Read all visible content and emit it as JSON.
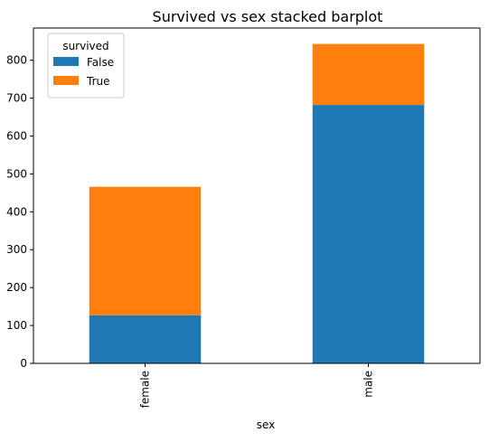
{
  "chart_data": {
    "type": "bar",
    "stacked": true,
    "title": "Survived vs sex stacked barplot",
    "xlabel": "sex",
    "ylabel": "",
    "categories": [
      "female",
      "male"
    ],
    "series": [
      {
        "name": "False",
        "color": "#1f77b4",
        "values": [
          127,
          682
        ]
      },
      {
        "name": "True",
        "color": "#ff7f0e",
        "values": [
          339,
          161
        ]
      }
    ],
    "ylim": [
      0,
      885
    ],
    "yticks": [
      "0",
      "100",
      "200",
      "300",
      "400",
      "500",
      "600",
      "700",
      "800"
    ],
    "legend": {
      "title": "survived",
      "placement": "upper-left"
    },
    "grid": false,
    "x_tick_rotation": "vertical"
  }
}
